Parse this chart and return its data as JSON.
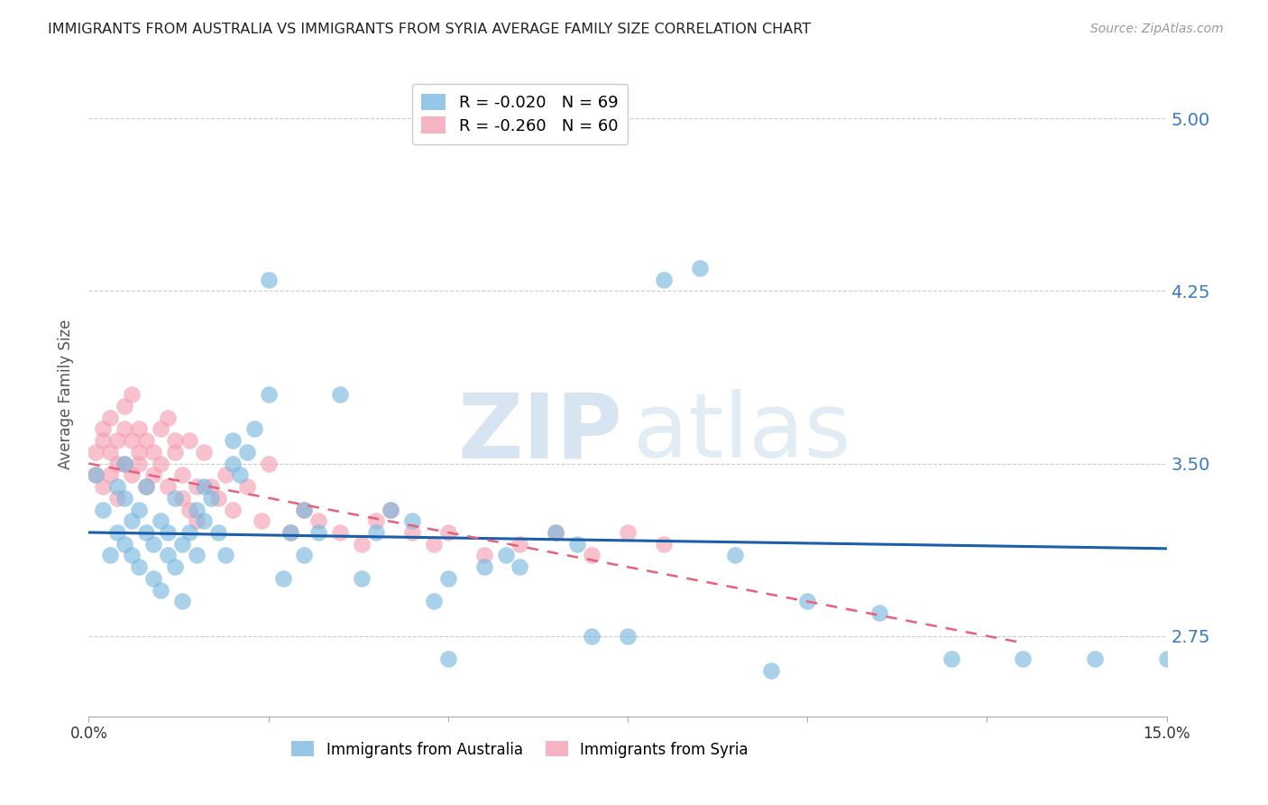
{
  "title": "IMMIGRANTS FROM AUSTRALIA VS IMMIGRANTS FROM SYRIA AVERAGE FAMILY SIZE CORRELATION CHART",
  "source": "Source: ZipAtlas.com",
  "ylabel": "Average Family Size",
  "yticks": [
    2.75,
    3.5,
    4.25,
    5.0
  ],
  "ytick_labels": [
    "2.75",
    "3.50",
    "4.25",
    "5.00"
  ],
  "xlim": [
    0.0,
    0.15
  ],
  "ylim": [
    2.4,
    5.2
  ],
  "australia_color": "#7db9e0",
  "syria_color": "#f4a0b5",
  "australia_line_color": "#1a5fa8",
  "syria_line_color": "#e8607a",
  "grid_color": "#cccccc",
  "background_color": "#ffffff",
  "watermark_zip": "ZIP",
  "watermark_atlas": "atlas",
  "australia_R": -0.02,
  "australia_N": 69,
  "syria_R": -0.26,
  "syria_N": 60,
  "aus_line_x": [
    0.0,
    0.15
  ],
  "aus_line_y": [
    3.2,
    3.13
  ],
  "syr_line_x": [
    0.0,
    0.13
  ],
  "syr_line_y": [
    3.5,
    2.72
  ],
  "australia_scatter_x": [
    0.001,
    0.002,
    0.003,
    0.004,
    0.004,
    0.005,
    0.005,
    0.005,
    0.006,
    0.006,
    0.007,
    0.007,
    0.008,
    0.008,
    0.009,
    0.009,
    0.01,
    0.01,
    0.011,
    0.011,
    0.012,
    0.012,
    0.013,
    0.013,
    0.014,
    0.015,
    0.015,
    0.016,
    0.016,
    0.017,
    0.018,
    0.019,
    0.02,
    0.02,
    0.021,
    0.022,
    0.023,
    0.025,
    0.025,
    0.027,
    0.028,
    0.03,
    0.03,
    0.032,
    0.035,
    0.038,
    0.04,
    0.042,
    0.045,
    0.048,
    0.05,
    0.05,
    0.055,
    0.058,
    0.06,
    0.065,
    0.068,
    0.07,
    0.075,
    0.08,
    0.085,
    0.09,
    0.095,
    0.1,
    0.11,
    0.12,
    0.13,
    0.14,
    0.15
  ],
  "australia_scatter_y": [
    3.45,
    3.3,
    3.1,
    3.2,
    3.4,
    3.15,
    3.35,
    3.5,
    3.25,
    3.1,
    3.3,
    3.05,
    3.4,
    3.2,
    3.15,
    3.0,
    3.25,
    2.95,
    3.2,
    3.1,
    3.05,
    3.35,
    3.15,
    2.9,
    3.2,
    3.3,
    3.1,
    3.25,
    3.4,
    3.35,
    3.2,
    3.1,
    3.5,
    3.6,
    3.45,
    3.55,
    3.65,
    3.8,
    4.3,
    3.0,
    3.2,
    3.1,
    3.3,
    3.2,
    3.8,
    3.0,
    3.2,
    3.3,
    3.25,
    2.9,
    3.0,
    2.65,
    3.05,
    3.1,
    3.05,
    3.2,
    3.15,
    2.75,
    2.75,
    4.3,
    4.35,
    3.1,
    2.6,
    2.9,
    2.85,
    2.65,
    2.65,
    2.65,
    2.65
  ],
  "syria_scatter_x": [
    0.001,
    0.001,
    0.002,
    0.002,
    0.002,
    0.003,
    0.003,
    0.003,
    0.004,
    0.004,
    0.004,
    0.005,
    0.005,
    0.005,
    0.006,
    0.006,
    0.006,
    0.007,
    0.007,
    0.007,
    0.008,
    0.008,
    0.009,
    0.009,
    0.01,
    0.01,
    0.011,
    0.011,
    0.012,
    0.012,
    0.013,
    0.013,
    0.014,
    0.014,
    0.015,
    0.015,
    0.016,
    0.017,
    0.018,
    0.019,
    0.02,
    0.022,
    0.024,
    0.025,
    0.028,
    0.03,
    0.032,
    0.035,
    0.038,
    0.04,
    0.042,
    0.045,
    0.048,
    0.05,
    0.055,
    0.06,
    0.065,
    0.07,
    0.075,
    0.08
  ],
  "syria_scatter_y": [
    3.45,
    3.55,
    3.6,
    3.4,
    3.65,
    3.55,
    3.45,
    3.7,
    3.5,
    3.6,
    3.35,
    3.65,
    3.5,
    3.75,
    3.45,
    3.6,
    3.8,
    3.5,
    3.65,
    3.55,
    3.4,
    3.6,
    3.55,
    3.45,
    3.5,
    3.65,
    3.4,
    3.7,
    3.55,
    3.6,
    3.45,
    3.35,
    3.6,
    3.3,
    3.4,
    3.25,
    3.55,
    3.4,
    3.35,
    3.45,
    3.3,
    3.4,
    3.25,
    3.5,
    3.2,
    3.3,
    3.25,
    3.2,
    3.15,
    3.25,
    3.3,
    3.2,
    3.15,
    3.2,
    3.1,
    3.15,
    3.2,
    3.1,
    3.2,
    3.15
  ]
}
